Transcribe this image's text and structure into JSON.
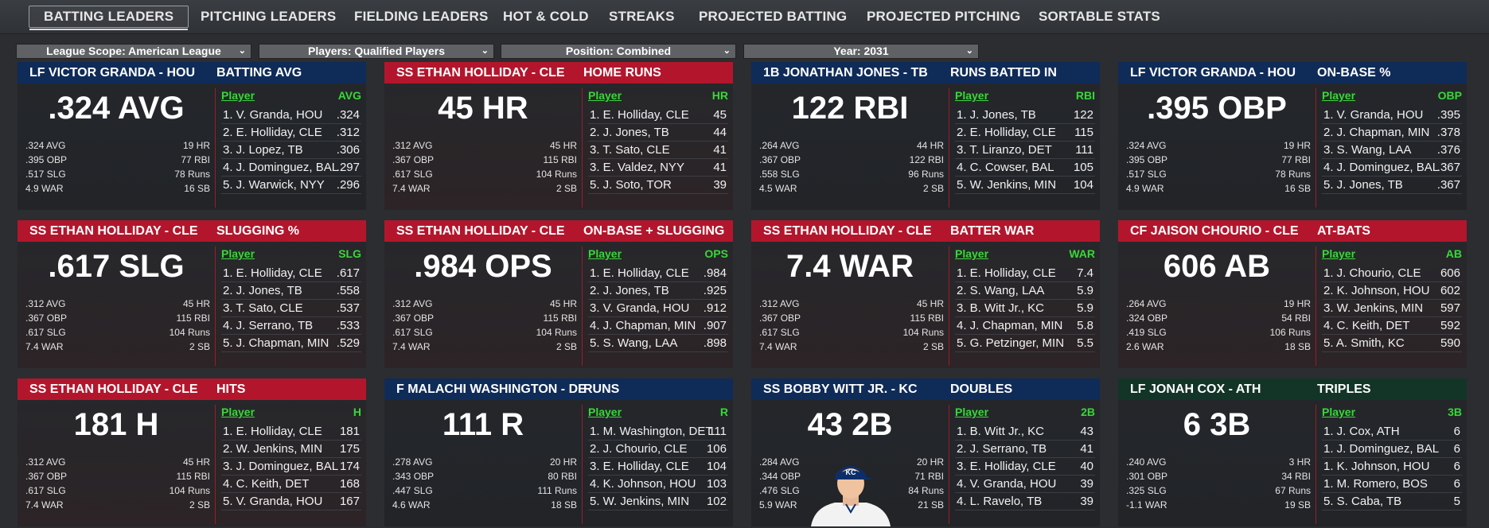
{
  "tabs": [
    {
      "label": "BATTING LEADERS",
      "active": true
    },
    {
      "label": "PITCHING LEADERS"
    },
    {
      "label": "FIELDING LEADERS"
    },
    {
      "label": "HOT & COLD"
    },
    {
      "label": "STREAKS"
    },
    {
      "label": "PROJECTED BATTING"
    },
    {
      "label": "PROJECTED PITCHING"
    },
    {
      "label": "SORTABLE STATS"
    }
  ],
  "filters": [
    {
      "label": "League Scope: American League"
    },
    {
      "label": "Players: Qualified Players"
    },
    {
      "label": "Position: Combined"
    },
    {
      "label": "Year: 2031"
    }
  ],
  "colors": {
    "red": "#b3162c",
    "blue": "#0f2b58",
    "green": "#123527",
    "highlight": "#38d838"
  },
  "cards": [
    {
      "theme": "blue",
      "player": "LF VICTOR GRANDA - HOU",
      "stat": "BATTING AVG",
      "big": ".324 AVG",
      "mini": [
        [
          ".324 AVG",
          "19 HR"
        ],
        [
          ".395 OBP",
          "77 RBI"
        ],
        [
          ".517 SLG",
          "78 Runs"
        ],
        [
          "4.9 WAR",
          "16 SB"
        ]
      ],
      "col": "AVG",
      "leaders": [
        [
          "1. V. Granda, HOU",
          ".324"
        ],
        [
          "2. E. Holliday, CLE",
          ".312"
        ],
        [
          "3. J. Lopez, TB",
          ".306"
        ],
        [
          "4. J. Dominguez, BAL",
          ".297"
        ],
        [
          "5. J. Warwick, NYY",
          ".296"
        ]
      ]
    },
    {
      "theme": "red",
      "player": "SS ETHAN HOLLIDAY - CLE",
      "stat": "HOME RUNS",
      "big": "45 HR",
      "mini": [
        [
          ".312 AVG",
          "45 HR"
        ],
        [
          ".367 OBP",
          "115 RBI"
        ],
        [
          ".617 SLG",
          "104 Runs"
        ],
        [
          "7.4 WAR",
          "2 SB"
        ]
      ],
      "col": "HR",
      "leaders": [
        [
          "1. E. Holliday, CLE",
          "45"
        ],
        [
          "2. J. Jones, TB",
          "44"
        ],
        [
          "3. T. Sato, CLE",
          "41"
        ],
        [
          "3. E. Valdez, NYY",
          "41"
        ],
        [
          "5. J. Soto, TOR",
          "39"
        ]
      ]
    },
    {
      "theme": "blue",
      "player": "1B JONATHAN JONES - TB",
      "stat": "RUNS BATTED IN",
      "big": "122 RBI",
      "mini": [
        [
          ".264 AVG",
          "44 HR"
        ],
        [
          ".367 OBP",
          "122 RBI"
        ],
        [
          ".558 SLG",
          "96 Runs"
        ],
        [
          "4.5 WAR",
          "2 SB"
        ]
      ],
      "col": "RBI",
      "leaders": [
        [
          "1. J. Jones, TB",
          "122"
        ],
        [
          "2. E. Holliday, CLE",
          "115"
        ],
        [
          "3. T. Liranzo, DET",
          "111"
        ],
        [
          "4. C. Cowser, BAL",
          "105"
        ],
        [
          "5. W. Jenkins, MIN",
          "104"
        ]
      ]
    },
    {
      "theme": "blue",
      "player": "LF VICTOR GRANDA - HOU",
      "stat": "ON-BASE %",
      "big": ".395 OBP",
      "mini": [
        [
          ".324 AVG",
          "19 HR"
        ],
        [
          ".395 OBP",
          "77 RBI"
        ],
        [
          ".517 SLG",
          "78 Runs"
        ],
        [
          "4.9 WAR",
          "16 SB"
        ]
      ],
      "col": "OBP",
      "leaders": [
        [
          "1. V. Granda, HOU",
          ".395"
        ],
        [
          "2. J. Chapman, MIN",
          ".378"
        ],
        [
          "3. S. Wang, LAA",
          ".376"
        ],
        [
          "4. J. Dominguez, BAL",
          ".367"
        ],
        [
          "5. J. Jones, TB",
          ".367"
        ]
      ]
    },
    {
      "theme": "red",
      "player": "SS ETHAN HOLLIDAY - CLE",
      "stat": "SLUGGING %",
      "big": ".617 SLG",
      "mini": [
        [
          ".312 AVG",
          "45 HR"
        ],
        [
          ".367 OBP",
          "115 RBI"
        ],
        [
          ".617 SLG",
          "104 Runs"
        ],
        [
          "7.4 WAR",
          "2 SB"
        ]
      ],
      "col": "SLG",
      "leaders": [
        [
          "1. E. Holliday, CLE",
          ".617"
        ],
        [
          "2. J. Jones, TB",
          ".558"
        ],
        [
          "3. T. Sato, CLE",
          ".537"
        ],
        [
          "4. J. Serrano, TB",
          ".533"
        ],
        [
          "5. J. Chapman, MIN",
          ".529"
        ]
      ]
    },
    {
      "theme": "red",
      "player": "SS ETHAN HOLLIDAY - CLE",
      "stat": "ON-BASE + SLUGGING",
      "big": ".984 OPS",
      "mini": [
        [
          ".312 AVG",
          "45 HR"
        ],
        [
          ".367 OBP",
          "115 RBI"
        ],
        [
          ".617 SLG",
          "104 Runs"
        ],
        [
          "7.4 WAR",
          "2 SB"
        ]
      ],
      "col": "OPS",
      "leaders": [
        [
          "1. E. Holliday, CLE",
          ".984"
        ],
        [
          "2. J. Jones, TB",
          ".925"
        ],
        [
          "3. V. Granda, HOU",
          ".912"
        ],
        [
          "4. J. Chapman, MIN",
          ".907"
        ],
        [
          "5. S. Wang, LAA",
          ".898"
        ]
      ]
    },
    {
      "theme": "red",
      "player": "SS ETHAN HOLLIDAY - CLE",
      "stat": "BATTER WAR",
      "big": "7.4 WAR",
      "mini": [
        [
          ".312 AVG",
          "45 HR"
        ],
        [
          ".367 OBP",
          "115 RBI"
        ],
        [
          ".617 SLG",
          "104 Runs"
        ],
        [
          "7.4 WAR",
          "2 SB"
        ]
      ],
      "col": "WAR",
      "leaders": [
        [
          "1. E. Holliday, CLE",
          "7.4"
        ],
        [
          "2. S. Wang, LAA",
          "5.9"
        ],
        [
          "3. B. Witt Jr., KC",
          "5.9"
        ],
        [
          "4. J. Chapman, MIN",
          "5.8"
        ],
        [
          "5. G. Petzinger, MIN",
          "5.5"
        ]
      ]
    },
    {
      "theme": "red",
      "player": "CF JAISON CHOURIO - CLE",
      "stat": "AT-BATS",
      "big": "606 AB",
      "mini": [
        [
          ".264 AVG",
          "19 HR"
        ],
        [
          ".324 OBP",
          "54 RBI"
        ],
        [
          ".419 SLG",
          "106 Runs"
        ],
        [
          "2.6 WAR",
          "18 SB"
        ]
      ],
      "col": "AB",
      "leaders": [
        [
          "1. J. Chourio, CLE",
          "606"
        ],
        [
          "2. K. Johnson, HOU",
          "602"
        ],
        [
          "3. W. Jenkins, MIN",
          "597"
        ],
        [
          "4. C. Keith, DET",
          "592"
        ],
        [
          "5. A. Smith, KC",
          "590"
        ]
      ]
    },
    {
      "theme": "red",
      "player": "SS ETHAN HOLLIDAY - CLE",
      "stat": "HITS",
      "big": "181 H",
      "mini": [
        [
          ".312 AVG",
          "45 HR"
        ],
        [
          ".367 OBP",
          "115 RBI"
        ],
        [
          ".617 SLG",
          "104 Runs"
        ],
        [
          "7.4 WAR",
          "2 SB"
        ]
      ],
      "col": "H",
      "leaders": [
        [
          "1. E. Holliday, CLE",
          "181"
        ],
        [
          "2. W. Jenkins, MIN",
          "175"
        ],
        [
          "3. J. Dominguez, BAL",
          "174"
        ],
        [
          "4. C. Keith, DET",
          "168"
        ],
        [
          "5. V. Granda, HOU",
          "167"
        ]
      ]
    },
    {
      "theme": "blue",
      "player": "F MALACHI WASHINGTON - DE",
      "stat": "RUNS",
      "big": "111 R",
      "mini": [
        [
          ".278 AVG",
          "20 HR"
        ],
        [
          ".343 OBP",
          "80 RBI"
        ],
        [
          ".447 SLG",
          "111 Runs"
        ],
        [
          "4.6 WAR",
          "18 SB"
        ]
      ],
      "col": "R",
      "leaders": [
        [
          "1. M. Washington, DET",
          "111"
        ],
        [
          "2. J. Chourio, CLE",
          "106"
        ],
        [
          "3. E. Holliday, CLE",
          "104"
        ],
        [
          "4. K. Johnson, HOU",
          "103"
        ],
        [
          "5. W. Jenkins, MIN",
          "102"
        ]
      ]
    },
    {
      "theme": "blue",
      "player": "SS BOBBY WITT JR. - KC",
      "stat": "DOUBLES",
      "big": "43 2B",
      "photo": true,
      "mini": [
        [
          ".284 AVG",
          "20 HR"
        ],
        [
          ".344 OBP",
          "71 RBI"
        ],
        [
          ".476 SLG",
          "84 Runs"
        ],
        [
          "5.9 WAR",
          "21 SB"
        ]
      ],
      "col": "2B",
      "leaders": [
        [
          "1. B. Witt Jr., KC",
          "43"
        ],
        [
          "2. J. Serrano, TB",
          "41"
        ],
        [
          "3. E. Holliday, CLE",
          "40"
        ],
        [
          "4. V. Granda, HOU",
          "39"
        ],
        [
          "4. L. Ravelo, TB",
          "39"
        ]
      ]
    },
    {
      "theme": "green",
      "player": "LF JONAH COX - ATH",
      "stat": "TRIPLES",
      "big": "6 3B",
      "mini": [
        [
          ".240 AVG",
          "3 HR"
        ],
        [
          ".301 OBP",
          "34 RBI"
        ],
        [
          ".325 SLG",
          "67 Runs"
        ],
        [
          "-1.1 WAR",
          "19 SB"
        ]
      ],
      "col": "3B",
      "leaders": [
        [
          "1. J. Cox, ATH",
          "6"
        ],
        [
          "1. J. Dominguez, BAL",
          "6"
        ],
        [
          "1. K. Johnson, HOU",
          "6"
        ],
        [
          "1. M. Romero, BOS",
          "6"
        ],
        [
          "5. S. Caba, TB",
          "5"
        ]
      ]
    }
  ]
}
